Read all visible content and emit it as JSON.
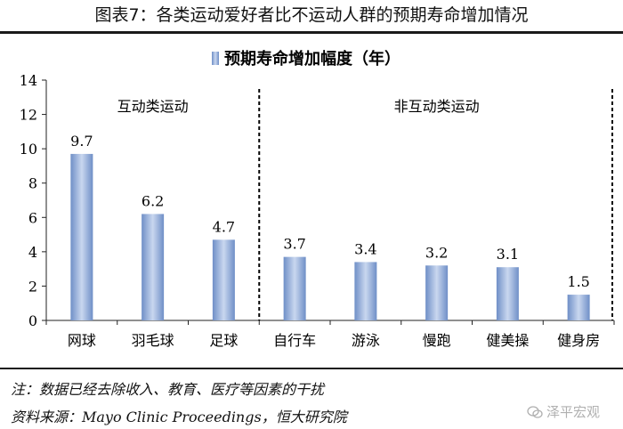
{
  "figure_title": "图表7：各类运动爱好者比不运动人群的预期寿命增加情况",
  "chart_data": {
    "type": "bar",
    "title": "",
    "legend": "预期寿命增加幅度（年）",
    "categories": [
      "网球",
      "羽毛球",
      "足球",
      "自行车",
      "游泳",
      "慢跑",
      "健美操",
      "健身房"
    ],
    "values": [
      9.7,
      6.2,
      4.7,
      3.7,
      3.4,
      3.2,
      3.1,
      1.5
    ],
    "value_labels": [
      "9.7",
      "6.2",
      "4.7",
      "3.7",
      "3.4",
      "3.2",
      "3.1",
      "1.5"
    ],
    "ylim": [
      0,
      14
    ],
    "yticks": [
      "0",
      "2",
      "4",
      "6",
      "8",
      "10",
      "12",
      "14"
    ],
    "groups": [
      {
        "label": "互动类运动",
        "count": 3
      },
      {
        "label": "非互动类运动",
        "count": 5
      }
    ],
    "bar_color": "#6f8fc7",
    "bar_highlight": "#c9d7ef"
  },
  "notes": {
    "note": "注：数据已经去除收入、教育、医疗等因素的干扰",
    "source": "资料来源：Mayo Clinic Proceedings，恒大研究院"
  },
  "watermark": "泽平宏观"
}
